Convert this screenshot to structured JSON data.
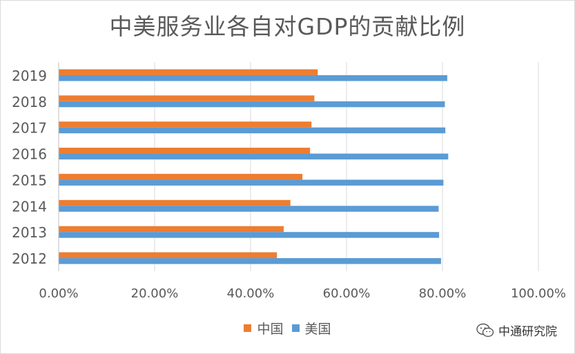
{
  "chart_data": {
    "type": "bar",
    "orientation": "horizontal",
    "title": "中美服务业各自对GDP的贡献比例",
    "categories": [
      "2012",
      "2013",
      "2014",
      "2015",
      "2016",
      "2017",
      "2018",
      "2019"
    ],
    "series": [
      {
        "name": "中国",
        "color": "#ED7D31",
        "values": [
          45.5,
          46.9,
          48.3,
          50.8,
          52.4,
          52.7,
          53.3,
          54.0
        ]
      },
      {
        "name": "美国",
        "color": "#5B9BD5",
        "values": [
          79.7,
          79.3,
          79.2,
          80.2,
          81.2,
          80.6,
          80.5,
          81.0
        ]
      }
    ],
    "xlim": [
      0,
      100
    ],
    "xticks": [
      "0.00%",
      "20.00%",
      "40.00%",
      "60.00%",
      "80.00%",
      "100.00%"
    ],
    "grid": true,
    "legend_position": "bottom"
  },
  "watermark": {
    "text": "中通研究院",
    "icon": "wechat-icon"
  }
}
